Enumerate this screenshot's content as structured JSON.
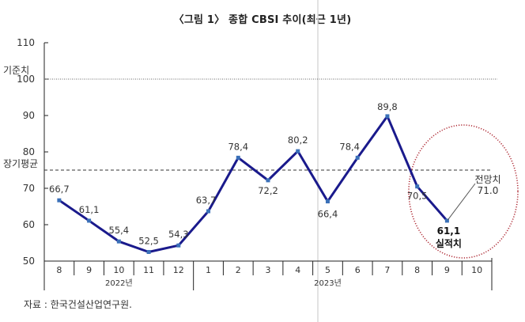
{
  "title": "〈그림 1〉 종합 CBSI 추이(최근 1년)",
  "source": "자료 : 한국건설산업연구원.",
  "chart_data": {
    "type": "line",
    "title": "〈그림 1〉 종합 CBSI 추이(최근 1년)",
    "xlabel": "",
    "ylabel": "",
    "ylim": [
      50,
      110
    ],
    "yticks": [
      50,
      60,
      70,
      80,
      90,
      100,
      110
    ],
    "categories": [
      "8",
      "9",
      "10",
      "11",
      "12",
      "1",
      "2",
      "3",
      "4",
      "5",
      "6",
      "7",
      "8",
      "9",
      "10"
    ],
    "year_groups": [
      {
        "label": "2022년",
        "start": 0,
        "end": 4
      },
      {
        "label": "2023년",
        "start": 5,
        "end": 14
      }
    ],
    "series": [
      {
        "name": "종합 CBSI",
        "color": "#1a1a8c",
        "values": [
          66.7,
          61.1,
          55.4,
          52.5,
          54.3,
          63.7,
          78.4,
          72.2,
          80.2,
          66.4,
          78.4,
          89.8,
          70.5,
          61.1,
          null
        ],
        "value_labels": [
          "66,7",
          "61,1",
          "55,4",
          "52,5",
          "54,3",
          "63,7",
          "78,4",
          "72,2",
          "80,2",
          "66,4",
          "78,4",
          "89,8",
          "70,5",
          "61,1",
          ""
        ]
      }
    ],
    "reference_lines": [
      {
        "label": "기준치",
        "value": 100,
        "style": "dotted"
      },
      {
        "label": "장기평균",
        "value": 75,
        "style": "dashed"
      }
    ],
    "forecast": {
      "label": "전망치",
      "value": 71.0,
      "value_label": "71.0",
      "category": "10"
    },
    "annotations": [
      {
        "text": "실적치",
        "value_label": "61,1",
        "category": "9",
        "bold": true
      },
      {
        "text": "red dotted circle highlighting Sep actual and Oct forecast"
      }
    ],
    "grid": false,
    "legend": "none"
  }
}
